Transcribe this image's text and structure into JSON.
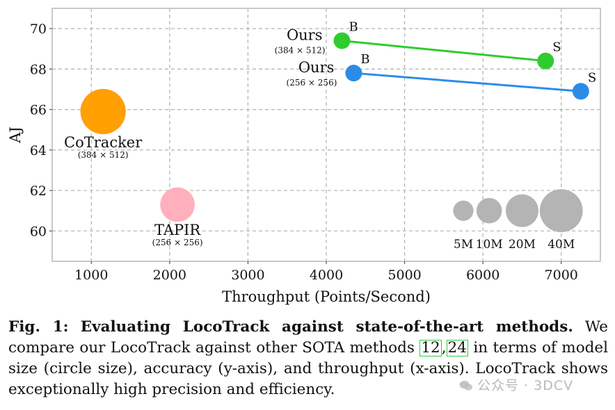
{
  "chart_data": {
    "type": "scatter",
    "xlabel": "Throughput (Points/Second)",
    "ylabel": "AJ",
    "xlim": [
      500,
      7500
    ],
    "ylim": [
      58.5,
      71.0
    ],
    "xticks": [
      1000,
      2000,
      3000,
      4000,
      5000,
      6000,
      7000
    ],
    "yticks": [
      60,
      62,
      64,
      66,
      68,
      70
    ],
    "grid": true,
    "points": [
      {
        "x": 1150,
        "y": 65.9,
        "size_M": 40,
        "color": "#ff9f00",
        "label": "CoTracker",
        "sublabel": "(384 × 512)"
      },
      {
        "x": 2100,
        "y": 61.3,
        "size_M": 20,
        "color": "#ffb0bc",
        "label": "TAPIR",
        "sublabel": "(256 × 256)"
      }
    ],
    "series": [
      {
        "color": "#2ecc2e",
        "label": "Ours",
        "sublabel": "(384 × 512)",
        "points": [
          {
            "x": 4200,
            "y": 69.4,
            "tag": "B"
          },
          {
            "x": 6800,
            "y": 68.4,
            "tag": "S"
          }
        ]
      },
      {
        "color": "#2b8ce8",
        "label": "Ours",
        "sublabel": "(256 × 256)",
        "points": [
          {
            "x": 4350,
            "y": 67.8,
            "tag": "B"
          },
          {
            "x": 7250,
            "y": 66.9,
            "tag": "S"
          }
        ]
      }
    ],
    "size_legend": {
      "color": "#b4b4b4",
      "items": [
        {
          "label": "5M",
          "size_M": 5,
          "x": 5750
        },
        {
          "label": "10M",
          "size_M": 10,
          "x": 6080
        },
        {
          "label": "20M",
          "size_M": 20,
          "x": 6500
        },
        {
          "label": "40M",
          "size_M": 40,
          "x": 7000
        }
      ],
      "y": 61.0
    }
  },
  "caption": {
    "fig_label": "Fig. 1:",
    "title": "Evaluating LocoTrack against state-of-the-art methods.",
    "text_before": "We compare our LocoTrack against other SOTA methods ",
    "citations": [
      "12",
      "24"
    ],
    "text_after": " in terms of model size (circle size), accuracy (y-axis), and throughput (x-axis). LocoTrack shows exceptionally high precision and efficiency."
  },
  "watermark": {
    "text": "公众号 · 3DCV",
    "icon": "wechat-icon"
  }
}
